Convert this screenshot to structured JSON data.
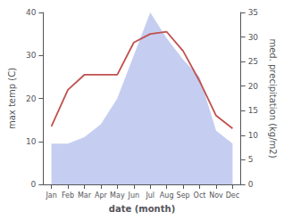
{
  "chart_data": {
    "type": "line",
    "xlabel": "date (month)",
    "ylabel": "max temp (C)",
    "y2label": "med. precipitation (kg/m2)",
    "categories": [
      "Jan",
      "Feb",
      "Mar",
      "Apr",
      "May",
      "Jun",
      "Jul",
      "Aug",
      "Sep",
      "Oct",
      "Nov",
      "Dec"
    ],
    "series": [
      {
        "type": "area",
        "color": "#c5cef0",
        "values": [
          9.5,
          9.5,
          11.0,
          14.0,
          20.0,
          30.0,
          40.0,
          34.0,
          29.0,
          25.0,
          12.5,
          9.5
        ]
      },
      {
        "type": "line",
        "color": "#c0504d",
        "values": [
          13.5,
          22.0,
          25.5,
          25.5,
          25.5,
          33.0,
          35.0,
          35.5,
          31.0,
          24.0,
          16.0,
          13.0
        ]
      }
    ],
    "ylim": [
      0,
      40
    ],
    "yticks": [
      0,
      10,
      20,
      30,
      40
    ],
    "y2lim": [
      0,
      35
    ],
    "y2ticks": [
      0,
      5,
      10,
      15,
      20,
      25,
      30,
      35
    ],
    "grid": false
  }
}
